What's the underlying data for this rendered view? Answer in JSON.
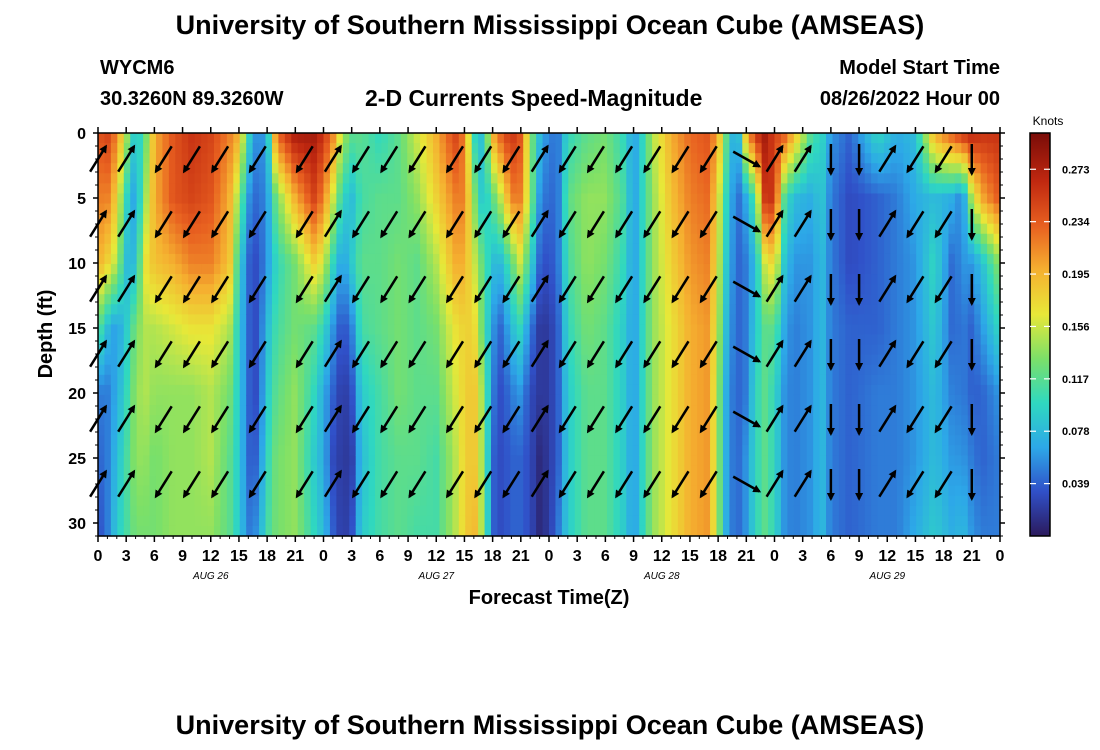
{
  "header": {
    "title": "University of Southern Mississippi Ocean Cube (AMSEAS)",
    "station": "WYCM6",
    "coords": "30.3260N  89.3260W",
    "subtitle": "2-D Currents Speed-Magnitude",
    "model_start_label": "Model Start Time",
    "model_start_value": "08/26/2022 Hour 00"
  },
  "footer": {
    "title": "University of Southern Mississippi Ocean Cube (AMSEAS)"
  },
  "colors": {
    "scale": [
      "#2b1a5c",
      "#3050c8",
      "#2da8e8",
      "#2fd8c0",
      "#7ce068",
      "#e8e838",
      "#f5b030",
      "#e86020",
      "#c02810",
      "#7a0c08"
    ]
  },
  "chart_data": {
    "type": "heatmap",
    "title": "2-D Currents Speed-Magnitude",
    "xlabel": "Forecast Time(Z)",
    "ylabel": "Depth (ft)",
    "x_range_hours": [
      0,
      96
    ],
    "y_range_ft": [
      0,
      31
    ],
    "y_ticks": [
      "0",
      "5",
      "10",
      "15",
      "20",
      "25",
      "30"
    ],
    "x_ticks": [
      "0",
      "3",
      "6",
      "9",
      "12",
      "15",
      "18",
      "21",
      "0",
      "3",
      "6",
      "9",
      "12",
      "15",
      "18",
      "21",
      "0",
      "3",
      "6",
      "9",
      "12",
      "15",
      "18",
      "21",
      "0",
      "3",
      "6",
      "9",
      "12",
      "15",
      "18",
      "21",
      "0"
    ],
    "date_labels": [
      {
        "text": "AUG 26",
        "hour": 12
      },
      {
        "text": "AUG 27",
        "hour": 36
      },
      {
        "text": "AUG 28",
        "hour": 60
      },
      {
        "text": "AUG 29",
        "hour": 84
      }
    ],
    "colorbar": {
      "title": "Knots",
      "ticks": [
        "0.273",
        "0.234",
        "0.195",
        "0.156",
        "0.117",
        "0.078",
        "0.039"
      ],
      "range": [
        0,
        0.3
      ]
    },
    "speed_profiles": [
      {
        "hour": 0,
        "values": [
          0.24,
          0.22,
          0.2,
          0.12,
          0.05,
          0.04,
          0.03
        ]
      },
      {
        "hour": 1,
        "values": [
          0.25,
          0.22,
          0.18,
          0.08,
          0.05,
          0.05,
          0.05
        ]
      },
      {
        "hour": 2,
        "values": [
          0.22,
          0.18,
          0.15,
          0.06,
          0.07,
          0.08,
          0.09
        ]
      },
      {
        "hour": 3,
        "values": [
          0.15,
          0.1,
          0.08,
          0.09,
          0.1,
          0.11,
          0.11
        ]
      },
      {
        "hour": 4,
        "values": [
          0.08,
          0.06,
          0.08,
          0.13,
          0.14,
          0.14,
          0.13
        ]
      },
      {
        "hour": 5,
        "values": [
          0.12,
          0.14,
          0.17,
          0.15,
          0.15,
          0.14,
          0.13
        ]
      },
      {
        "hour": 6,
        "values": [
          0.2,
          0.2,
          0.19,
          0.15,
          0.14,
          0.13,
          0.13
        ]
      },
      {
        "hour": 8,
        "values": [
          0.24,
          0.24,
          0.2,
          0.16,
          0.14,
          0.14,
          0.14
        ]
      },
      {
        "hour": 10,
        "values": [
          0.26,
          0.25,
          0.22,
          0.17,
          0.14,
          0.14,
          0.14
        ]
      },
      {
        "hour": 12,
        "values": [
          0.25,
          0.24,
          0.22,
          0.17,
          0.15,
          0.15,
          0.14
        ]
      },
      {
        "hour": 14,
        "values": [
          0.22,
          0.2,
          0.19,
          0.15,
          0.13,
          0.12,
          0.12
        ]
      },
      {
        "hour": 15,
        "values": [
          0.2,
          0.14,
          0.1,
          0.09,
          0.09,
          0.09,
          0.09
        ]
      },
      {
        "hour": 16,
        "values": [
          0.1,
          0.06,
          0.04,
          0.04,
          0.04,
          0.04,
          0.05
        ]
      },
      {
        "hour": 17,
        "values": [
          0.05,
          0.04,
          0.03,
          0.03,
          0.03,
          0.04,
          0.06
        ]
      },
      {
        "hour": 18,
        "values": [
          0.07,
          0.06,
          0.06,
          0.08,
          0.09,
          0.1,
          0.11
        ]
      },
      {
        "hour": 19,
        "values": [
          0.23,
          0.13,
          0.1,
          0.11,
          0.12,
          0.13,
          0.13
        ]
      },
      {
        "hour": 21,
        "values": [
          0.28,
          0.2,
          0.13,
          0.13,
          0.14,
          0.14,
          0.14
        ]
      },
      {
        "hour": 23,
        "values": [
          0.28,
          0.25,
          0.18,
          0.12,
          0.1,
          0.09,
          0.1
        ]
      },
      {
        "hour": 24,
        "values": [
          0.26,
          0.22,
          0.16,
          0.1,
          0.07,
          0.07,
          0.08
        ]
      },
      {
        "hour": 25,
        "values": [
          0.22,
          0.16,
          0.1,
          0.06,
          0.04,
          0.03,
          0.04
        ]
      },
      {
        "hour": 26,
        "values": [
          0.15,
          0.1,
          0.06,
          0.03,
          0.02,
          0.02,
          0.02
        ]
      },
      {
        "hour": 27,
        "values": [
          0.12,
          0.08,
          0.09,
          0.05,
          0.03,
          0.02,
          0.03
        ]
      },
      {
        "hour": 28,
        "values": [
          0.12,
          0.11,
          0.12,
          0.11,
          0.09,
          0.08,
          0.09
        ]
      },
      {
        "hour": 30,
        "values": [
          0.1,
          0.12,
          0.12,
          0.12,
          0.11,
          0.11,
          0.11
        ]
      },
      {
        "hour": 32,
        "values": [
          0.12,
          0.12,
          0.13,
          0.13,
          0.13,
          0.12,
          0.12
        ]
      },
      {
        "hour": 34,
        "values": [
          0.16,
          0.14,
          0.12,
          0.12,
          0.12,
          0.12,
          0.11
        ]
      },
      {
        "hour": 36,
        "values": [
          0.2,
          0.18,
          0.15,
          0.13,
          0.12,
          0.11,
          0.11
        ]
      },
      {
        "hour": 38,
        "values": [
          0.25,
          0.22,
          0.2,
          0.17,
          0.16,
          0.15,
          0.15
        ]
      },
      {
        "hour": 39,
        "values": [
          0.22,
          0.22,
          0.2,
          0.18,
          0.18,
          0.18,
          0.18
        ]
      },
      {
        "hour": 40,
        "values": [
          0.1,
          0.14,
          0.16,
          0.18,
          0.19,
          0.19,
          0.2
        ]
      },
      {
        "hour": 41,
        "values": [
          0.08,
          0.08,
          0.12,
          0.12,
          0.14,
          0.14,
          0.14
        ]
      },
      {
        "hour": 42,
        "values": [
          0.2,
          0.12,
          0.08,
          0.06,
          0.05,
          0.04,
          0.04
        ]
      },
      {
        "hour": 43,
        "values": [
          0.24,
          0.16,
          0.08,
          0.04,
          0.03,
          0.03,
          0.03
        ]
      },
      {
        "hour": 44,
        "values": [
          0.26,
          0.22,
          0.12,
          0.08,
          0.05,
          0.04,
          0.04
        ]
      },
      {
        "hour": 45,
        "values": [
          0.24,
          0.22,
          0.16,
          0.1,
          0.06,
          0.04,
          0.04
        ]
      },
      {
        "hour": 46,
        "values": [
          0.14,
          0.14,
          0.1,
          0.05,
          0.03,
          0.03,
          0.03
        ]
      },
      {
        "hour": 47,
        "values": [
          0.08,
          0.06,
          0.04,
          0.02,
          0.02,
          0.01,
          0.01
        ]
      },
      {
        "hour": 48,
        "values": [
          0.05,
          0.04,
          0.03,
          0.02,
          0.02,
          0.02,
          0.02
        ]
      },
      {
        "hour": 49,
        "values": [
          0.05,
          0.05,
          0.05,
          0.04,
          0.04,
          0.04,
          0.05
        ]
      },
      {
        "hour": 50,
        "values": [
          0.1,
          0.12,
          0.11,
          0.1,
          0.09,
          0.09,
          0.09
        ]
      },
      {
        "hour": 52,
        "values": [
          0.12,
          0.14,
          0.14,
          0.13,
          0.12,
          0.12,
          0.12
        ]
      },
      {
        "hour": 54,
        "values": [
          0.13,
          0.14,
          0.13,
          0.12,
          0.12,
          0.12,
          0.12
        ]
      },
      {
        "hour": 56,
        "values": [
          0.1,
          0.11,
          0.1,
          0.09,
          0.09,
          0.09,
          0.09
        ]
      },
      {
        "hour": 57,
        "values": [
          0.06,
          0.06,
          0.06,
          0.06,
          0.06,
          0.06,
          0.06
        ]
      },
      {
        "hour": 58,
        "values": [
          0.1,
          0.1,
          0.1,
          0.1,
          0.1,
          0.1,
          0.1
        ]
      },
      {
        "hour": 59,
        "values": [
          0.15,
          0.14,
          0.14,
          0.14,
          0.14,
          0.14,
          0.14
        ]
      },
      {
        "hour": 61,
        "values": [
          0.2,
          0.19,
          0.18,
          0.17,
          0.17,
          0.17,
          0.17
        ]
      },
      {
        "hour": 63,
        "values": [
          0.23,
          0.22,
          0.21,
          0.2,
          0.2,
          0.2,
          0.2
        ]
      },
      {
        "hour": 65,
        "values": [
          0.24,
          0.23,
          0.22,
          0.21,
          0.21,
          0.21,
          0.21
        ]
      },
      {
        "hour": 66,
        "values": [
          0.2,
          0.17,
          0.16,
          0.15,
          0.14,
          0.14,
          0.14
        ]
      },
      {
        "hour": 67,
        "values": [
          0.11,
          0.09,
          0.08,
          0.07,
          0.06,
          0.06,
          0.06
        ]
      },
      {
        "hour": 68,
        "values": [
          0.05,
          0.04,
          0.04,
          0.04,
          0.04,
          0.04,
          0.04
        ]
      },
      {
        "hour": 69,
        "values": [
          0.2,
          0.07,
          0.05,
          0.05,
          0.05,
          0.06,
          0.06
        ]
      },
      {
        "hour": 70,
        "values": [
          0.26,
          0.12,
          0.08,
          0.09,
          0.1,
          0.1,
          0.1
        ]
      },
      {
        "hour": 71,
        "values": [
          0.28,
          0.26,
          0.16,
          0.12,
          0.12,
          0.12,
          0.12
        ]
      },
      {
        "hour": 72,
        "values": [
          0.25,
          0.26,
          0.18,
          0.12,
          0.1,
          0.1,
          0.1
        ]
      },
      {
        "hour": 73,
        "values": [
          0.24,
          0.12,
          0.09,
          0.07,
          0.06,
          0.06,
          0.06
        ]
      },
      {
        "hour": 74,
        "values": [
          0.2,
          0.08,
          0.06,
          0.05,
          0.05,
          0.05,
          0.05
        ]
      },
      {
        "hour": 76,
        "values": [
          0.11,
          0.07,
          0.06,
          0.06,
          0.06,
          0.06,
          0.06
        ]
      },
      {
        "hour": 77,
        "values": [
          0.1,
          0.09,
          0.08,
          0.08,
          0.08,
          0.08,
          0.08
        ]
      },
      {
        "hour": 78,
        "values": [
          0.06,
          0.05,
          0.05,
          0.05,
          0.05,
          0.05,
          0.05
        ]
      },
      {
        "hour": 80,
        "values": [
          0.04,
          0.03,
          0.03,
          0.04,
          0.04,
          0.04,
          0.04
        ]
      },
      {
        "hour": 83,
        "values": [
          0.1,
          0.04,
          0.04,
          0.04,
          0.05,
          0.05,
          0.05
        ]
      },
      {
        "hour": 85,
        "values": [
          0.07,
          0.05,
          0.05,
          0.05,
          0.05,
          0.05,
          0.05
        ]
      },
      {
        "hour": 87,
        "values": [
          0.08,
          0.07,
          0.06,
          0.06,
          0.06,
          0.06,
          0.07
        ]
      },
      {
        "hour": 89,
        "values": [
          0.2,
          0.08,
          0.1,
          0.09,
          0.08,
          0.08,
          0.09
        ]
      },
      {
        "hour": 91,
        "values": [
          0.24,
          0.07,
          0.04,
          0.04,
          0.05,
          0.06,
          0.07
        ]
      },
      {
        "hour": 92,
        "values": [
          0.26,
          0.05,
          0.06,
          0.05,
          0.05,
          0.06,
          0.08
        ]
      },
      {
        "hour": 93,
        "values": [
          0.27,
          0.15,
          0.06,
          0.04,
          0.04,
          0.05,
          0.06
        ]
      },
      {
        "hour": 94,
        "values": [
          0.26,
          0.2,
          0.08,
          0.06,
          0.04,
          0.04,
          0.05
        ]
      },
      {
        "hour": 96,
        "values": [
          0.26,
          0.24,
          0.14,
          0.1,
          0.06,
          0.05,
          0.05
        ]
      }
    ],
    "profile_depths_ft": [
      0,
      5,
      10,
      15,
      20,
      25,
      31
    ],
    "vector_depths_ft": [
      2,
      7,
      12,
      17,
      22,
      27
    ],
    "vectors": [
      {
        "hour": 0,
        "dir": "NE"
      },
      {
        "hour": 3,
        "dir": "NE"
      },
      {
        "hour": 7,
        "dir": "SW"
      },
      {
        "hour": 10,
        "dir": "SW"
      },
      {
        "hour": 13,
        "dir": "SW"
      },
      {
        "hour": 17,
        "dir": "SW"
      },
      {
        "hour": 22,
        "dir": "SW"
      },
      {
        "hour": 25,
        "dir": "NE"
      },
      {
        "hour": 28,
        "dir": "SW"
      },
      {
        "hour": 31,
        "dir": "SW"
      },
      {
        "hour": 34,
        "dir": "SW"
      },
      {
        "hour": 38,
        "dir": "SW"
      },
      {
        "hour": 41,
        "dir": "SW"
      },
      {
        "hour": 44,
        "dir": "SW"
      },
      {
        "hour": 47,
        "dir": "NE"
      },
      {
        "hour": 50,
        "dir": "SW"
      },
      {
        "hour": 53,
        "dir": "SW"
      },
      {
        "hour": 56,
        "dir": "SW"
      },
      {
        "hour": 59,
        "dir": "SW"
      },
      {
        "hour": 62,
        "dir": "SW"
      },
      {
        "hour": 65,
        "dir": "SW"
      },
      {
        "hour": 69,
        "dir": "SE"
      },
      {
        "hour": 72,
        "dir": "NE"
      },
      {
        "hour": 75,
        "dir": "NE"
      },
      {
        "hour": 78,
        "dir": "S"
      },
      {
        "hour": 81,
        "dir": "S"
      },
      {
        "hour": 84,
        "dir": "NE"
      },
      {
        "hour": 87,
        "dir": "SW"
      },
      {
        "hour": 90,
        "dir": "SW"
      },
      {
        "hour": 93,
        "dir": "S"
      }
    ]
  }
}
